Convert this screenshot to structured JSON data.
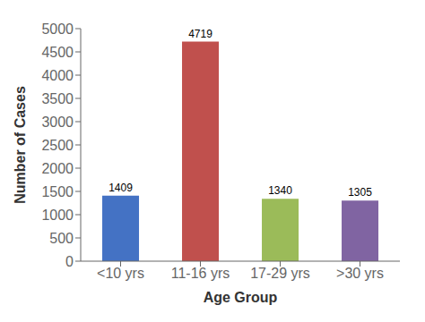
{
  "chart_data": {
    "type": "bar",
    "categories": [
      "<10 yrs",
      "11-16 yrs",
      "17-29 yrs",
      ">30 yrs"
    ],
    "values": [
      1409,
      4719,
      1340,
      1305
    ],
    "colors": [
      "#4472c4",
      "#c0504d",
      "#9bbb59",
      "#8064a2"
    ],
    "xlabel": "Age Group",
    "ylabel": "Number of Cases",
    "ylim": [
      0,
      5000
    ],
    "yticks": [
      0,
      500,
      1000,
      1500,
      2000,
      2500,
      3000,
      3500,
      4000,
      4500,
      5000
    ],
    "grid": false,
    "data_labels": true
  }
}
